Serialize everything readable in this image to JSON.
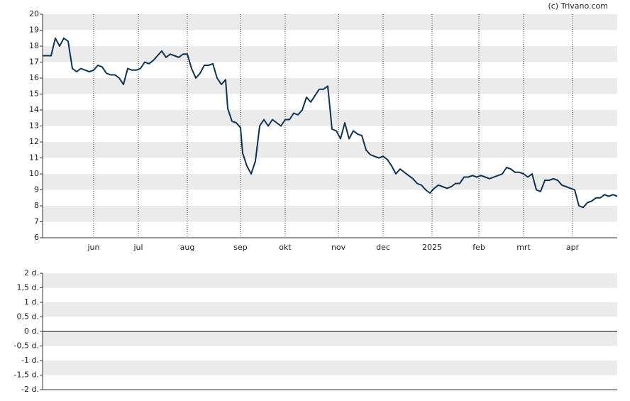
{
  "chart_data": [
    {
      "type": "line",
      "credit": "(c) Trivano.com",
      "xlim": [
        0,
        270
      ],
      "xticks": [
        {
          "value": 24,
          "label": "jun"
        },
        {
          "value": 45,
          "label": "jul"
        },
        {
          "value": 68,
          "label": "aug"
        },
        {
          "value": 93,
          "label": "sep"
        },
        {
          "value": 114,
          "label": "okt"
        },
        {
          "value": 139,
          "label": "nov"
        },
        {
          "value": 160,
          "label": "dec"
        },
        {
          "value": 183,
          "label": "2025"
        },
        {
          "value": 205,
          "label": "feb"
        },
        {
          "value": 226,
          "label": "mrt"
        },
        {
          "value": 249,
          "label": "apr"
        }
      ],
      "ylim": [
        6,
        20
      ],
      "yticks": [
        6,
        7,
        8,
        9,
        10,
        11,
        12,
        13,
        14,
        15,
        16,
        17,
        18,
        19,
        20
      ],
      "grid": true,
      "series": [
        {
          "color": "#0e3352",
          "x": [
            0,
            2,
            4,
            6,
            8,
            10,
            12,
            14,
            16,
            18,
            20,
            22,
            24,
            26,
            28,
            30,
            32,
            34,
            36,
            38,
            40,
            42,
            44,
            46,
            48,
            50,
            52,
            54,
            56,
            58,
            60,
            62,
            64,
            66,
            68,
            70,
            72,
            74,
            76,
            78,
            80,
            82,
            84,
            86,
            87,
            89,
            91,
            93,
            94,
            96,
            98,
            100,
            102,
            104,
            106,
            108,
            110,
            112,
            114,
            116,
            118,
            120,
            122,
            124,
            126,
            128,
            130,
            132,
            134,
            136,
            138,
            140,
            142,
            144,
            146,
            148,
            150,
            152,
            154,
            156,
            158,
            160,
            162,
            164,
            166,
            168,
            170,
            172,
            174,
            176,
            178,
            180,
            182,
            184,
            186,
            188,
            190,
            192,
            194,
            196,
            198,
            200,
            202,
            204,
            206,
            208,
            210,
            212,
            214,
            216,
            218,
            220,
            222,
            224,
            226,
            228,
            230,
            232,
            234,
            236,
            238,
            240,
            242,
            244,
            246,
            248,
            250,
            252,
            254,
            256,
            258,
            260,
            262,
            264,
            266,
            268,
            270
          ],
          "values": [
            17.4,
            17.4,
            17.4,
            18.5,
            18.0,
            18.5,
            18.3,
            16.6,
            16.4,
            16.6,
            16.5,
            16.4,
            16.5,
            16.8,
            16.7,
            16.3,
            16.2,
            16.2,
            16.0,
            15.6,
            16.6,
            16.5,
            16.5,
            16.6,
            17.0,
            16.9,
            17.1,
            17.4,
            17.7,
            17.3,
            17.5,
            17.4,
            17.3,
            17.5,
            17.5,
            16.6,
            16.0,
            16.3,
            16.8,
            16.8,
            16.9,
            16.0,
            15.6,
            15.9,
            14.1,
            13.3,
            13.2,
            12.9,
            11.3,
            10.5,
            10.0,
            10.8,
            13.0,
            13.4,
            13.0,
            13.4,
            13.2,
            13.0,
            13.4,
            13.4,
            13.8,
            13.7,
            14.0,
            14.8,
            14.5,
            14.9,
            15.3,
            15.3,
            15.5,
            12.8,
            12.7,
            12.2,
            13.2,
            12.2,
            12.7,
            12.5,
            12.4,
            11.5,
            11.2,
            11.1,
            11.0,
            11.1,
            10.9,
            10.5,
            10.0,
            10.3,
            10.1,
            9.9,
            9.7,
            9.4,
            9.3,
            9.0,
            8.8,
            9.1,
            9.3,
            9.2,
            9.1,
            9.2,
            9.4,
            9.4,
            9.8,
            9.8,
            9.9,
            9.8,
            9.9,
            9.8,
            9.7,
            9.8,
            9.9,
            10.0,
            10.4,
            10.3,
            10.1,
            10.1,
            10.0,
            9.8,
            10.0,
            9.0,
            8.9,
            9.6,
            9.6,
            9.7,
            9.6,
            9.3,
            9.2,
            9.1,
            9.0,
            8.0,
            7.9,
            8.2,
            8.3,
            8.5,
            8.5,
            8.7,
            8.6,
            8.7,
            8.6
          ]
        }
      ]
    },
    {
      "type": "line",
      "ylim": [
        -2,
        2
      ],
      "yticks": [
        {
          "value": -2,
          "label": "-2 d."
        },
        {
          "value": -1.5,
          "label": "-1,5 d."
        },
        {
          "value": -1,
          "label": "-1 d."
        },
        {
          "value": -0.5,
          "label": "-0,5 d."
        },
        {
          "value": 0,
          "label": "0 d."
        },
        {
          "value": 0.5,
          "label": "0,5 d."
        },
        {
          "value": 1,
          "label": "1 d."
        },
        {
          "value": 1.5,
          "label": "1,5 d."
        },
        {
          "value": 2,
          "label": "2 d."
        }
      ],
      "grid": true
    }
  ]
}
